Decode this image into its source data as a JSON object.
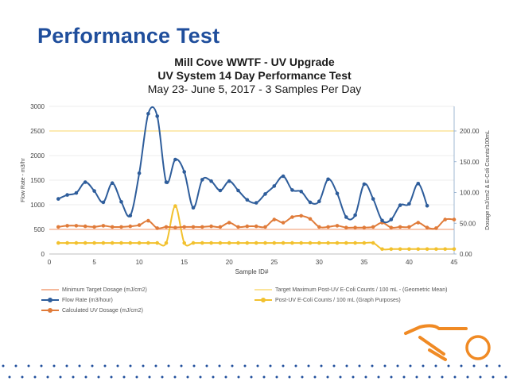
{
  "slide": {
    "title": "Performance Test"
  },
  "colors": {
    "title_blue": "#1f4e9c",
    "flow": "#2e5d9b",
    "dosage": "#e07b39",
    "ecoli": "#f2c12e",
    "min_target": "#f5b89a",
    "max_target": "#fbe49a",
    "logo_orange": "#f08a24",
    "dots": "#1f4e9c"
  },
  "chart_data": {
    "type": "line",
    "title": "Mill Cove WWTF - UV Upgrade",
    "title2": "UV System 14 Day Performance Test",
    "subtitle": "May 23- June 5, 2017 - 3 Samples Per Day",
    "xlabel": "Sample ID#",
    "ylabel_left": "Flow Rate - m3/hr",
    "ylabel_right": "Dosage  mJ/cm2 & E-Coli Counts/100mL",
    "xlim": [
      0,
      45
    ],
    "ylim_left": [
      0,
      3000
    ],
    "ylim_right": [
      0,
      240
    ],
    "x_ticks": [
      "0",
      "5",
      "10",
      "15",
      "20",
      "25",
      "30",
      "35",
      "40",
      "45"
    ],
    "y_left_ticks": [
      "0",
      "500",
      "1000",
      "1500",
      "2000",
      "2500",
      "3000"
    ],
    "y_right_ticks": [
      "0.00",
      "50.00",
      "100.00",
      "150.00",
      "200.00"
    ],
    "reference_lines": [
      {
        "name": "Minimum Target Dosage (mJ/cm2)",
        "axis": "right",
        "value": 40
      },
      {
        "name": "Target Maximum Post-UV E-Coli Counts / 100 mL - (Geometric Mean)",
        "axis": "right",
        "value": 200
      }
    ],
    "series": [
      {
        "name": "Flow Rate (m3/hour)",
        "axis": "left",
        "x": [
          1,
          2,
          3,
          4,
          5,
          6,
          7,
          8,
          9,
          10,
          11,
          12,
          13,
          14,
          15,
          16,
          17,
          18,
          19,
          20,
          21,
          22,
          23,
          24,
          25,
          26,
          27,
          28,
          29,
          30,
          31,
          32,
          33,
          34,
          35,
          36,
          37,
          38,
          39,
          40,
          41,
          42
        ],
        "values": [
          1120,
          1200,
          1240,
          1460,
          1280,
          1050,
          1440,
          1060,
          780,
          1640,
          2850,
          2800,
          1460,
          1920,
          1670,
          940,
          1510,
          1480,
          1290,
          1480,
          1290,
          1100,
          1040,
          1220,
          1380,
          1580,
          1300,
          1270,
          1050,
          1070,
          1520,
          1230,
          750,
          790,
          1420,
          1120,
          680,
          700,
          990,
          1020,
          1430,
          980
        ]
      },
      {
        "name": "Calculated UV Dosage (mJ/cm2)",
        "axis": "right",
        "x": [
          1,
          2,
          3,
          4,
          5,
          6,
          7,
          8,
          9,
          10,
          11,
          12,
          13,
          14,
          15,
          16,
          17,
          18,
          19,
          20,
          21,
          22,
          23,
          24,
          25,
          26,
          27,
          28,
          29,
          30,
          31,
          32,
          33,
          34,
          35,
          36,
          37,
          38,
          39,
          40,
          41,
          42,
          43,
          44,
          45
        ],
        "values": [
          44,
          46,
          46,
          45,
          44,
          46,
          44,
          44,
          45,
          47,
          54,
          42,
          44,
          43,
          44,
          44,
          44,
          45,
          44,
          51,
          44,
          45,
          45,
          44,
          56,
          51,
          60,
          62,
          57,
          44,
          44,
          46,
          43,
          43,
          43,
          44,
          51,
          43,
          44,
          44,
          51,
          43,
          42,
          56,
          56
        ]
      },
      {
        "name": "Post-UV E-Coli Counts / 100 mL (Graph Purposes)",
        "axis": "right",
        "x": [
          1,
          2,
          3,
          4,
          5,
          6,
          7,
          8,
          9,
          10,
          11,
          12,
          13,
          14,
          15,
          16,
          17,
          18,
          19,
          20,
          21,
          22,
          23,
          24,
          25,
          26,
          27,
          28,
          29,
          30,
          31,
          32,
          33,
          34,
          35,
          36,
          37,
          38,
          39,
          40,
          41,
          42,
          43,
          44,
          45
        ],
        "values": [
          18,
          18,
          18,
          18,
          18,
          18,
          18,
          18,
          18,
          18,
          18,
          18,
          18,
          78,
          18,
          18,
          18,
          18,
          18,
          18,
          18,
          18,
          18,
          18,
          18,
          18,
          18,
          18,
          18,
          18,
          18,
          18,
          18,
          18,
          18,
          18,
          8,
          8,
          8,
          8,
          8,
          8,
          8,
          8,
          8
        ]
      }
    ],
    "legend_placement": "bottom"
  }
}
